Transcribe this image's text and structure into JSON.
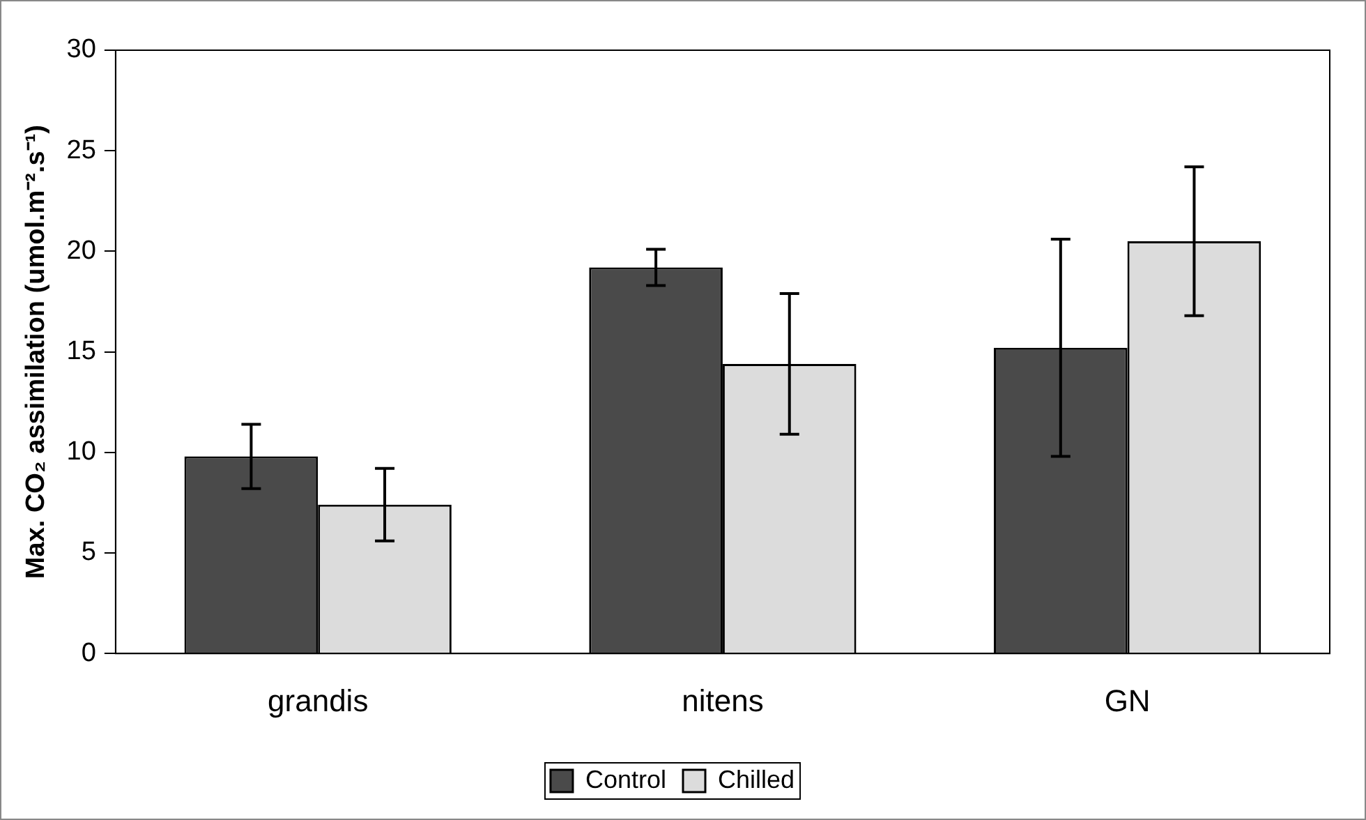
{
  "chart_data": {
    "type": "bar",
    "ylabel": "Max. CO₂ assimilation (umol.m⁻².s⁻¹)",
    "categories": [
      "grandis",
      "nitens",
      "GN"
    ],
    "series": [
      {
        "name": "Control",
        "color": "#4a4a4a",
        "values": [
          9.8,
          19.2,
          15.2
        ],
        "errors": [
          1.6,
          0.9,
          5.4
        ]
      },
      {
        "name": "Chilled",
        "color": "#dcdcdc",
        "values": [
          7.4,
          14.4,
          20.5
        ],
        "errors": [
          1.8,
          3.5,
          3.7
        ]
      }
    ],
    "ylim": [
      0,
      30
    ],
    "yticks": [
      0,
      5,
      10,
      15,
      20,
      25,
      30
    ],
    "grid": false,
    "legend": "bottom"
  }
}
